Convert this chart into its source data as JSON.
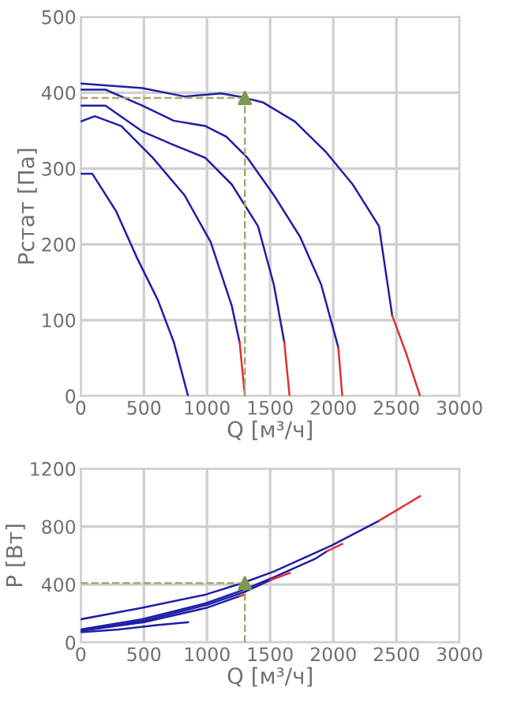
{
  "chart_data": [
    {
      "type": "line",
      "xlabel": "Q [м³/ч]",
      "ylabel": "Рстат [Па]",
      "xlim": [
        0,
        3000
      ],
      "ylim": [
        0,
        500
      ],
      "xticks": [
        0,
        500,
        1000,
        1500,
        2000,
        2500,
        3000
      ],
      "yticks": [
        0,
        100,
        200,
        300,
        400,
        500
      ],
      "grid": true,
      "series": [
        {
          "color": "#1f1fa8",
          "x": [
            0,
            487,
            821,
            1112,
            1279,
            1446,
            1696,
            1946,
            2154,
            2362,
            2467
          ],
          "values": [
            412,
            406,
            395,
            399,
            394,
            387,
            362,
            321,
            279,
            224,
            106
          ]
        },
        {
          "color": "#e03030",
          "x": [
            2467,
            2580,
            2687
          ],
          "values": [
            106,
            55,
            0
          ]
        },
        {
          "color": "#1f1fa8",
          "x": [
            0,
            196,
            487,
            737,
            987,
            1154,
            1321,
            1529,
            1737,
            1904,
            2040
          ],
          "values": [
            404,
            404,
            383,
            363,
            356,
            342,
            314,
            265,
            210,
            147,
            64
          ]
        },
        {
          "color": "#e03030",
          "x": [
            2040,
            2071
          ],
          "values": [
            64,
            0
          ]
        },
        {
          "color": "#1f1fa8",
          "x": [
            0,
            196,
            487,
            737,
            987,
            1196,
            1404,
            1529,
            1612
          ],
          "values": [
            383,
            383,
            349,
            331,
            314,
            279,
            224,
            147,
            71
          ]
        },
        {
          "color": "#e03030",
          "x": [
            1612,
            1654
          ],
          "values": [
            71,
            0
          ]
        },
        {
          "color": "#1f1fa8",
          "x": [
            0,
            112,
            321,
            571,
            821,
            1029,
            1196,
            1258
          ],
          "values": [
            362,
            369,
            356,
            314,
            265,
            203,
            119,
            71
          ]
        },
        {
          "color": "#e03030",
          "x": [
            1258,
            1300
          ],
          "values": [
            71,
            0
          ]
        },
        {
          "color": "#1f1fa8",
          "x": [
            0,
            92,
            279,
            446,
            612,
            737,
            850
          ],
          "values": [
            293,
            293,
            244,
            182,
            126,
            71,
            0
          ]
        },
        {
          "color": "#a8a870",
          "line_style": "dashed",
          "x": [
            0,
            1300
          ],
          "values": [
            393,
            393
          ]
        },
        {
          "color": "#a8a870",
          "line_style": "dashed",
          "x": [
            1300,
            1300
          ],
          "values": [
            0,
            393
          ]
        },
        {
          "type": "scatter",
          "marker": "triangle",
          "color": "#7a9a50",
          "x": [
            1300
          ],
          "values": [
            393
          ]
        }
      ]
    },
    {
      "type": "line",
      "xlabel": "Q [м³/ч]",
      "ylabel": "P [Вт]",
      "xlim": [
        0,
        3000
      ],
      "ylim": [
        0,
        1200
      ],
      "xticks": [
        0,
        500,
        1000,
        1500,
        2000,
        2500,
        3000
      ],
      "yticks": [
        0,
        400,
        800,
        1200
      ],
      "grid": true,
      "series": [
        {
          "color": "#1f1fa8",
          "x": [
            0,
            487,
            987,
            1279,
            1529,
            1987,
            2362
          ],
          "values": [
            160,
            240,
            330,
            410,
            490,
            670,
            840
          ]
        },
        {
          "color": "#1f1fa8",
          "x": [
            0,
            487,
            987,
            1279,
            1529,
            1862,
            1950
          ],
          "values": [
            90,
            160,
            270,
            360,
            450,
            580,
            630
          ]
        },
        {
          "color": "#1f1fa8",
          "x": [
            0,
            500,
            1000,
            1300,
            1500
          ],
          "values": [
            80,
            150,
            260,
            350,
            430
          ]
        },
        {
          "color": "#1f1fa8",
          "x": [
            0,
            500,
            1000,
            1258
          ],
          "values": [
            80,
            140,
            240,
            320
          ]
        },
        {
          "color": "#1f1fa8",
          "x": [
            0,
            300,
            600,
            850
          ],
          "values": [
            70,
            90,
            120,
            140
          ]
        },
        {
          "color": "#e03030",
          "x": [
            2362,
            2687
          ],
          "values": [
            840,
            1010
          ]
        },
        {
          "color": "#e03030",
          "x": [
            1950,
            2071
          ],
          "values": [
            630,
            680
          ]
        },
        {
          "color": "#e03030",
          "x": [
            1500,
            1654
          ],
          "values": [
            430,
            480
          ]
        },
        {
          "color": "#e03030",
          "x": [
            1258,
            1300
          ],
          "values": [
            320,
            330
          ]
        },
        {
          "color": "#a8a870",
          "line_style": "dashed",
          "x": [
            0,
            1300
          ],
          "values": [
            410,
            410
          ]
        },
        {
          "color": "#a8a870",
          "line_style": "dashed",
          "x": [
            1300,
            1300
          ],
          "values": [
            0,
            410
          ]
        },
        {
          "type": "scatter",
          "marker": "triangle",
          "color": "#7a9a50",
          "x": [
            1300
          ],
          "values": [
            410
          ]
        }
      ]
    }
  ]
}
